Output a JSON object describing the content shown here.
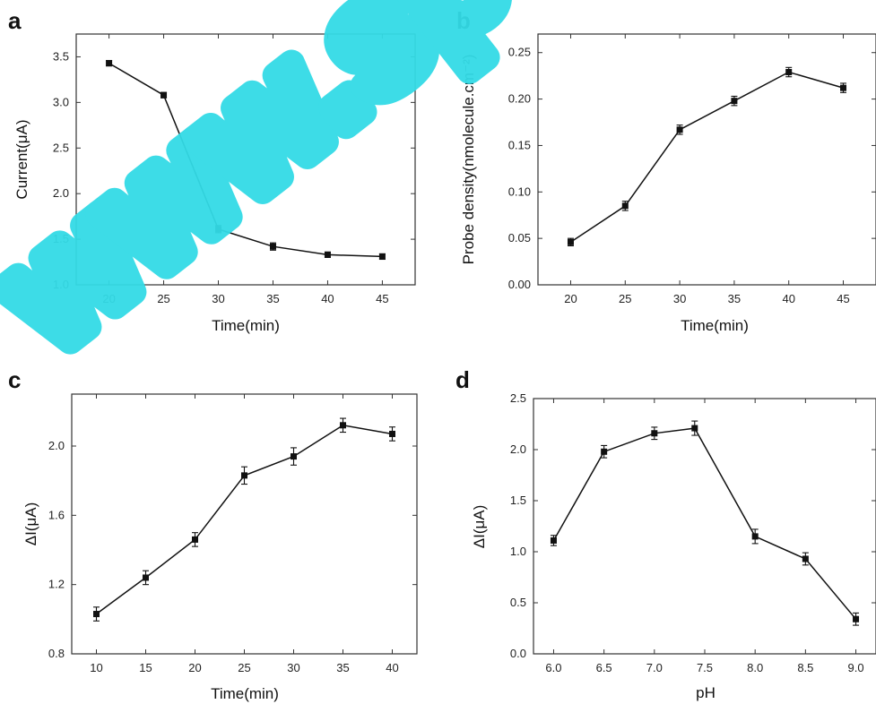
{
  "watermark": "www.spi",
  "chart_data": [
    {
      "panel": "a",
      "type": "line",
      "xlabel": "Time(min)",
      "ylabel": "Current(μA)",
      "xlim": [
        17,
        48
      ],
      "ylim": [
        1.0,
        3.75
      ],
      "xticks": [
        20,
        25,
        30,
        35,
        40,
        45
      ],
      "xtick_labels": [
        "20",
        "25",
        "30",
        "35",
        "40",
        "45"
      ],
      "yticks": [
        1.0,
        1.5,
        2.0,
        2.5,
        3.0,
        3.5
      ],
      "ytick_labels": [
        "1.0",
        "1.5",
        "2.0",
        "2.5",
        "3.0",
        "3.5"
      ],
      "grid": false,
      "series": [
        {
          "x": [
            20,
            25,
            30,
            35,
            40,
            45
          ],
          "y": [
            3.43,
            3.08,
            1.61,
            1.42,
            1.33,
            1.31
          ],
          "err": [
            0.03,
            0.03,
            0.04,
            0.04,
            0.03,
            0.03
          ]
        }
      ]
    },
    {
      "panel": "b",
      "type": "line",
      "xlabel": "Time(min)",
      "ylabel": "Probe density(nmolecule.cm⁻²)",
      "xlim": [
        17,
        48
      ],
      "ylim": [
        0.0,
        0.27
      ],
      "xticks": [
        20,
        25,
        30,
        35,
        40,
        45
      ],
      "xtick_labels": [
        "20",
        "25",
        "30",
        "35",
        "40",
        "45"
      ],
      "yticks": [
        0.0,
        0.05,
        0.1,
        0.15,
        0.2,
        0.25
      ],
      "ytick_labels": [
        "0.00",
        "0.05",
        "0.10",
        "0.15",
        "0.20",
        "0.25"
      ],
      "grid": false,
      "series": [
        {
          "x": [
            20,
            25,
            30,
            35,
            40,
            45
          ],
          "y": [
            0.046,
            0.085,
            0.167,
            0.198,
            0.229,
            0.212
          ],
          "err": [
            0.004,
            0.005,
            0.005,
            0.005,
            0.005,
            0.005
          ]
        }
      ]
    },
    {
      "panel": "c",
      "type": "line",
      "xlabel": "Time(min)",
      "ylabel": "ΔI(μA)",
      "xlim": [
        7.5,
        42.5
      ],
      "ylim": [
        0.8,
        2.3
      ],
      "xticks": [
        10,
        15,
        20,
        25,
        30,
        35,
        40
      ],
      "xtick_labels": [
        "10",
        "15",
        "20",
        "25",
        "30",
        "35",
        "40"
      ],
      "yticks": [
        0.8,
        1.2,
        1.6,
        2.0
      ],
      "ytick_labels": [
        "0.8",
        "1.2",
        "1.6",
        "2.0"
      ],
      "grid": false,
      "series": [
        {
          "x": [
            10,
            15,
            20,
            25,
            30,
            35,
            40
          ],
          "y": [
            1.03,
            1.24,
            1.46,
            1.83,
            1.94,
            2.12,
            2.07
          ],
          "err": [
            0.04,
            0.04,
            0.04,
            0.05,
            0.05,
            0.04,
            0.04
          ]
        }
      ]
    },
    {
      "panel": "d",
      "type": "line",
      "xlabel": "pH",
      "ylabel": "ΔI(μA)",
      "xlim": [
        5.8,
        9.2
      ],
      "ylim": [
        0.0,
        2.5
      ],
      "xticks": [
        6.0,
        6.5,
        7.0,
        7.5,
        8.0,
        8.5,
        9.0
      ],
      "xtick_labels": [
        "6.0",
        "6.5",
        "7.0",
        "7.5",
        "8.0",
        "8.5",
        "9.0"
      ],
      "yticks": [
        0.0,
        0.5,
        1.0,
        1.5,
        2.0,
        2.5
      ],
      "ytick_labels": [
        "0.0",
        "0.5",
        "1.0",
        "1.5",
        "2.0",
        "2.5"
      ],
      "grid": false,
      "series": [
        {
          "x": [
            6.0,
            6.5,
            7.0,
            7.4,
            8.0,
            8.5,
            9.0
          ],
          "y": [
            1.11,
            1.98,
            2.16,
            2.21,
            1.15,
            0.93,
            0.34
          ],
          "err": [
            0.05,
            0.06,
            0.06,
            0.07,
            0.07,
            0.06,
            0.06
          ]
        }
      ]
    }
  ]
}
